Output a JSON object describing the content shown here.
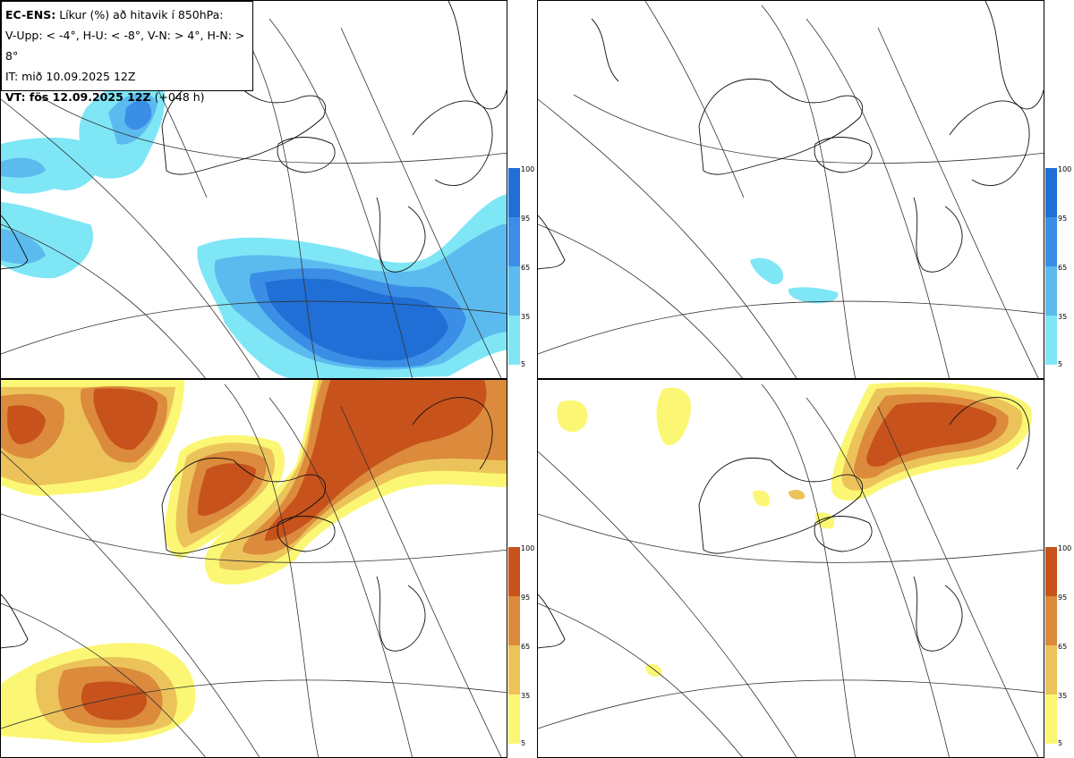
{
  "header": {
    "model": "EC-ENS:",
    "title": "Líkur (%) að hitavik í 850hPa:",
    "thresholds": "V-Upp: < -4°, H-U: < -8°, V-N: > 4°, H-N: > 8°",
    "init_time": "IT: mið 10.09.2025 12Z",
    "valid_label": "VT: fös 12.09.2025 12Z",
    "valid_offset": "(+048 h)"
  },
  "colorbar_blue": {
    "ticks": [
      "100",
      "95",
      "65",
      "35",
      "5"
    ],
    "colors": [
      "#1f6fd6",
      "#3b8ee6",
      "#5bbbef",
      "#7fe6f6"
    ]
  },
  "colorbar_orange": {
    "ticks": [
      "100",
      "95",
      "65",
      "35",
      "5"
    ],
    "colors": [
      "#c7521b",
      "#dc8a3c",
      "#ecc35a",
      "#fbf774"
    ]
  },
  "panels": [
    {
      "name": "V-Upp",
      "palette": "blue"
    },
    {
      "name": "H-U",
      "palette": "blue"
    },
    {
      "name": "V-N",
      "palette": "orange"
    },
    {
      "name": "H-N",
      "palette": "orange"
    }
  ]
}
